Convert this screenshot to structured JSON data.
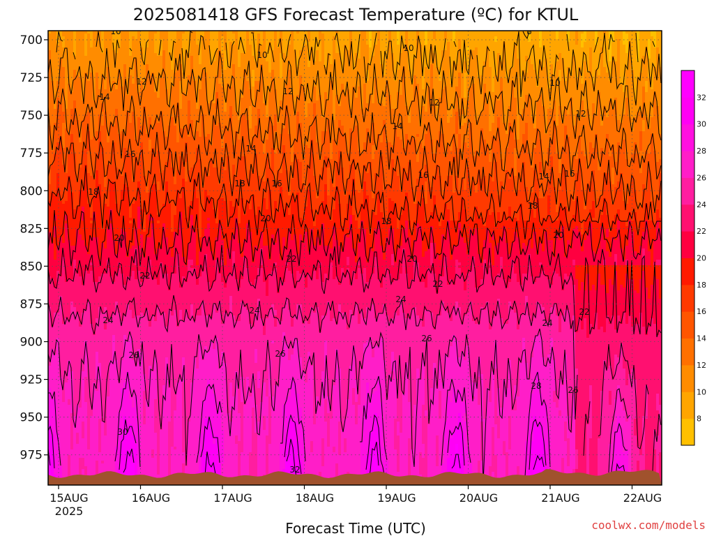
{
  "chart_data": {
    "type": "heatmap",
    "title": "2025081418 GFS Forecast Temperature (ºC) for KTUL",
    "xlabel": "Forecast Time (UTC)",
    "ylabel": "",
    "credit": "coolwx.com/models",
    "x_ticks": [
      "15AUG",
      "16AUG",
      "17AUG",
      "18AUG",
      "19AUG",
      "20AUG",
      "21AUG",
      "22AUG"
    ],
    "x_tick_year": "2025",
    "y_axis": "pressure (hPa), inverted",
    "y_ticks": [
      700,
      725,
      750,
      775,
      800,
      825,
      850,
      875,
      900,
      925,
      950,
      975
    ],
    "ylim": [
      995,
      694
    ],
    "grid": true,
    "colorbar": {
      "ticks": [
        8,
        10,
        12,
        14,
        16,
        18,
        20,
        22,
        24,
        26,
        28,
        30,
        32
      ],
      "levels": [
        6,
        8,
        10,
        12,
        14,
        16,
        18,
        20,
        22,
        24,
        26,
        28,
        30,
        32,
        34
      ],
      "colors": [
        "#ffc000",
        "#ffa500",
        "#ff8c00",
        "#ff7000",
        "#ff5500",
        "#ff3a00",
        "#ff1a00",
        "#ff0040",
        "#ff1070",
        "#ff1ea0",
        "#ff1ec8",
        "#ff10e0",
        "#ff00f5",
        "#ff00ff"
      ]
    },
    "surface_color": "#a0522d",
    "contour_interval": 2,
    "contour_labels": [
      8,
      10,
      12,
      14,
      16,
      18,
      20,
      22,
      24,
      26,
      28,
      30,
      32
    ],
    "profile_model": {
      "pressure_levels": [
        700,
        750,
        800,
        850,
        900,
        950,
        990
      ],
      "mean_temp": [
        9.5,
        13,
        17,
        21.5,
        25.5,
        27.5,
        29
      ]
    }
  }
}
